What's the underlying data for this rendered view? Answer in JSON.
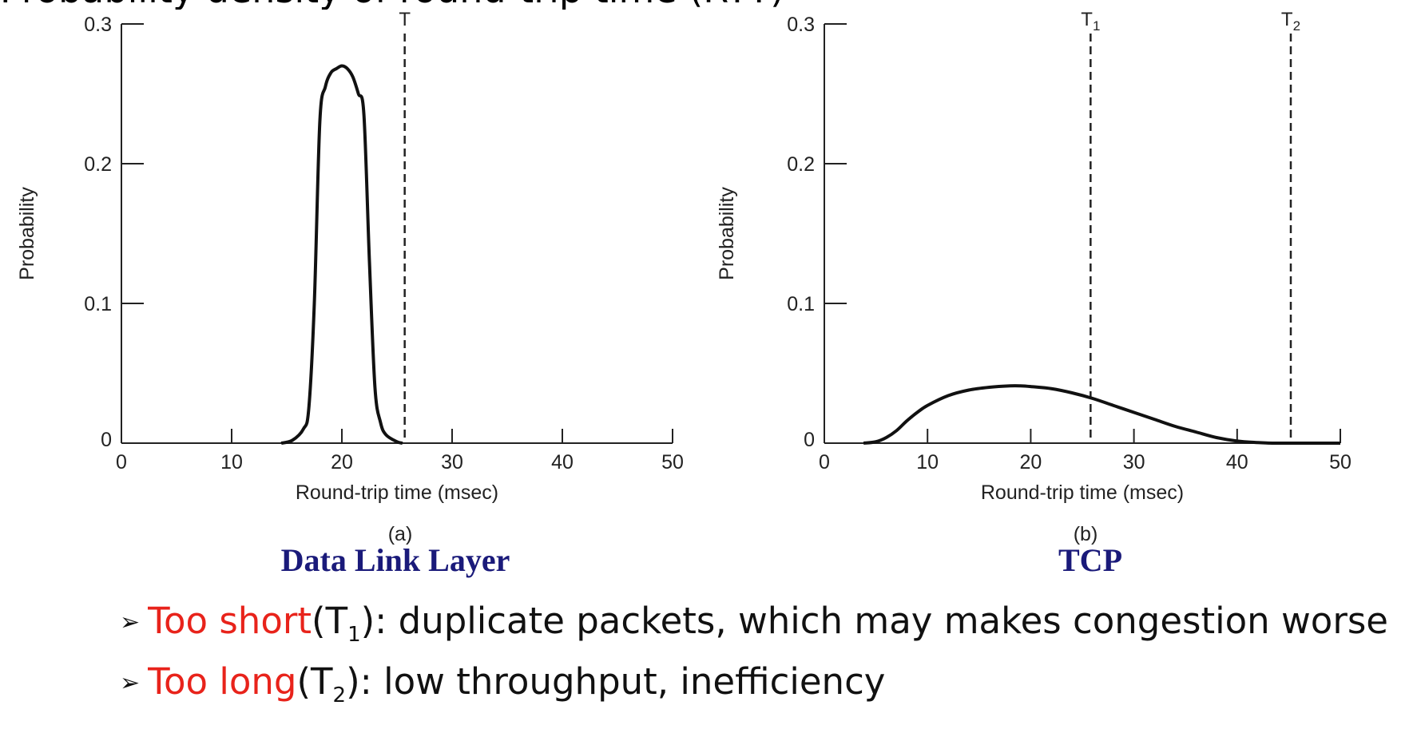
{
  "slide_title_fragment": "Probability density of round-trip time (RTT)",
  "chart_data": [
    {
      "type": "line",
      "panel": "(a)",
      "caption": "Data Link Layer",
      "xlabel": "Round-trip time (msec)",
      "ylabel": "Probability",
      "xlim": [
        0,
        50
      ],
      "ylim": [
        0,
        0.3
      ],
      "xticks": [
        "0",
        "10",
        "20",
        "30",
        "40",
        "50"
      ],
      "yticks": [
        "0",
        "0.1",
        "0.2",
        "0.3"
      ],
      "grid": false,
      "series": [
        {
          "x": [
            14.5,
            15.5,
            16.5,
            17.0,
            17.5,
            18.0,
            18.5,
            19.0,
            19.5,
            20.0,
            20.5,
            21.0,
            21.5,
            22.0,
            22.5,
            23.0,
            23.5,
            24.0,
            25.0,
            25.5
          ],
          "y": [
            0.0,
            0.002,
            0.01,
            0.025,
            0.1,
            0.23,
            0.255,
            0.265,
            0.268,
            0.27,
            0.268,
            0.262,
            0.25,
            0.235,
            0.13,
            0.04,
            0.015,
            0.006,
            0.001,
            0.0
          ]
        }
      ],
      "thresholds": [
        {
          "x": 25.7,
          "label": "T",
          "sub": ""
        }
      ]
    },
    {
      "type": "line",
      "panel": "(b)",
      "caption": "TCP",
      "xlabel": "Round-trip time (msec)",
      "ylabel": "Probability",
      "xlim": [
        0,
        50
      ],
      "ylim": [
        0,
        0.3
      ],
      "xticks": [
        "0",
        "10",
        "20",
        "30",
        "40",
        "50"
      ],
      "yticks": [
        "0",
        "0.1",
        "0.2",
        "0.3"
      ],
      "grid": false,
      "series": [
        {
          "x": [
            3.8,
            5,
            6,
            7,
            8,
            9,
            10,
            12,
            14,
            16,
            18,
            19,
            20,
            22,
            24,
            26,
            28,
            30,
            32,
            34,
            36,
            38,
            40,
            42,
            43,
            44,
            45,
            50
          ],
          "y": [
            0.0,
            0.001,
            0.004,
            0.009,
            0.016,
            0.022,
            0.027,
            0.034,
            0.038,
            0.04,
            0.041,
            0.041,
            0.0405,
            0.039,
            0.036,
            0.032,
            0.027,
            0.022,
            0.017,
            0.012,
            0.008,
            0.004,
            0.0015,
            0.0004,
            0.0001,
            0.0,
            0.0,
            0.0
          ]
        }
      ],
      "thresholds": [
        {
          "x": 25.8,
          "label": "T",
          "sub": "1"
        },
        {
          "x": 45.2,
          "label": "T",
          "sub": "2"
        }
      ]
    }
  ],
  "bullets": [
    {
      "highlight": "Too short",
      "paren_label": "T",
      "paren_sub": "1",
      "rest": ": duplicate packets, which may makes congestion worse"
    },
    {
      "highlight": "Too long",
      "paren_label": "T",
      "paren_sub": "2",
      "rest": ": low throughput, inefficiency"
    }
  ],
  "colors": {
    "highlight": "#e8231b",
    "caption": "#1a1a7a",
    "axis": "#222222"
  },
  "icons": {
    "bullet": "arrowhead-icon"
  }
}
